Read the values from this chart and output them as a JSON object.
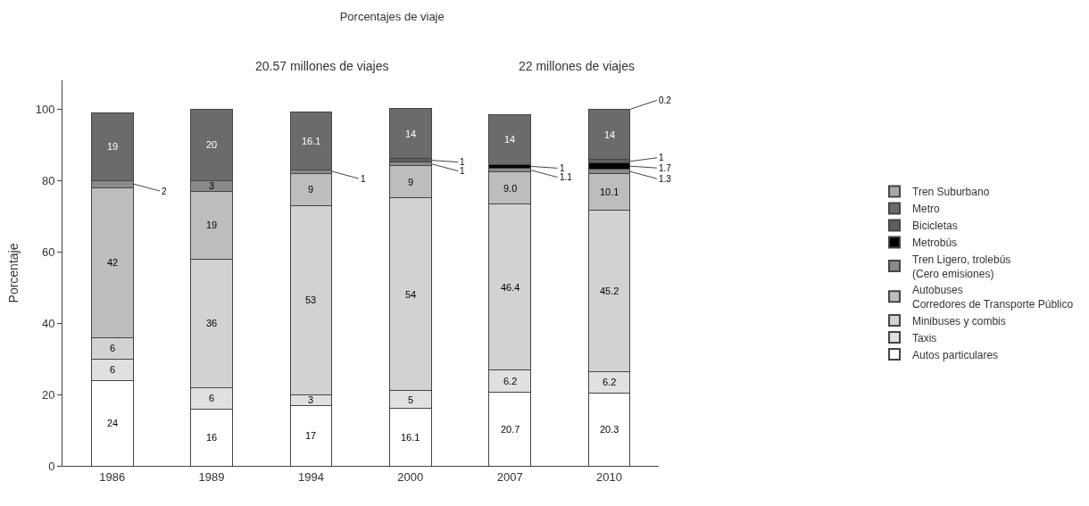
{
  "chart_data": {
    "type": "bar",
    "stacked": true,
    "title": "Porcentajes de viaje",
    "ylabel": "Porcentaje",
    "categories": [
      "1986",
      "1989",
      "1994",
      "2000",
      "2007",
      "2010"
    ],
    "ylim": [
      0,
      108
    ],
    "yticks": [
      0,
      20,
      40,
      60,
      80,
      100
    ],
    "legend": "right",
    "annotations": [
      "20.57 millones de viajes",
      "22 millones de viajes"
    ],
    "series": [
      {
        "name": "Autos particulares",
        "color": "#ffffff",
        "values": [
          24,
          16,
          17,
          16.1,
          20.7,
          20.3
        ],
        "value_labels": [
          "24",
          "16",
          "17",
          "16.1",
          "20.7",
          "20.3"
        ]
      },
      {
        "name": "Taxis",
        "color": "#e0e0e0",
        "values": [
          6,
          6,
          3,
          5,
          6.2,
          6.2
        ],
        "value_labels": [
          "6",
          "6",
          "3",
          "5",
          "6.2",
          "6.2"
        ]
      },
      {
        "name": "Minibuses y combis",
        "color": "#d2d2d2",
        "values": [
          6,
          36,
          53,
          54,
          46.4,
          45.2
        ],
        "value_labels": [
          "6",
          "36",
          "53",
          "54",
          "46.4",
          "45.2"
        ]
      },
      {
        "name": "Autobuses\nCorredores de Transporte Público",
        "color": "#bdbdbd",
        "values": [
          42,
          19,
          9,
          9,
          9.0,
          10.1
        ],
        "value_labels": [
          "42",
          "19",
          "9",
          "9",
          "9.0",
          "10.1"
        ]
      },
      {
        "name": "Tren Ligero, trolebús\n(Cero emisiones)",
        "color": "#8a8a8a",
        "values": [
          2,
          3,
          1,
          1,
          1.1,
          1.3
        ],
        "value_labels": [
          "2",
          "3",
          "1",
          "1",
          "1.1",
          "1.3"
        ]
      },
      {
        "name": "Metrobús",
        "color": "#000000",
        "values": [
          null,
          null,
          null,
          null,
          1,
          1.7
        ],
        "value_labels": [
          null,
          null,
          null,
          null,
          "1",
          "1.7"
        ]
      },
      {
        "name": "Bicicletas",
        "color": "#5e5e5e",
        "values": [
          null,
          null,
          null,
          1,
          null,
          1
        ],
        "value_labels": [
          null,
          null,
          null,
          "1",
          null,
          "1"
        ]
      },
      {
        "name": "Metro",
        "color": "#6b6b6b",
        "values": [
          19,
          20,
          16.1,
          14,
          14,
          14
        ],
        "value_labels": [
          "19",
          "20",
          "16.1",
          "14",
          "14",
          "14"
        ]
      },
      {
        "name": "Tren Suburbano",
        "color": "#a8a8a8",
        "values": [
          null,
          null,
          null,
          null,
          null,
          0.2
        ],
        "value_labels": [
          null,
          null,
          null,
          null,
          null,
          "0.2"
        ]
      }
    ]
  }
}
